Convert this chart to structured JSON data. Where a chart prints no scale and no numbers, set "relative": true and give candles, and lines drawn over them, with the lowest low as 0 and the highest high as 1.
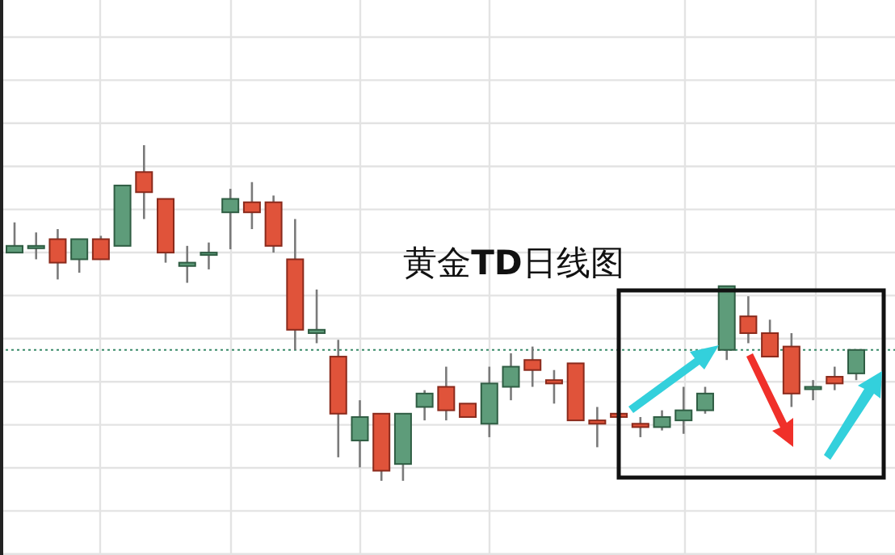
{
  "chart_data": {
    "type": "candlestick",
    "title": "黄金**TD**日线图",
    "relative": true,
    "grid": true,
    "categories": [
      null,
      null,
      null,
      null,
      null,
      null,
      null,
      null,
      null,
      null,
      null,
      null,
      null,
      null,
      null,
      null,
      null,
      null,
      null,
      null,
      null,
      null,
      null,
      null,
      null,
      null,
      null,
      null,
      null,
      null,
      null,
      null,
      null,
      null,
      null,
      null,
      null,
      null,
      null,
      null
    ],
    "ohlc": [
      [
        0.68,
        0.77,
        0.68,
        0.7
      ],
      [
        0.7,
        0.74,
        0.66,
        0.7
      ],
      [
        0.72,
        0.75,
        0.6,
        0.65
      ],
      [
        0.66,
        0.72,
        0.62,
        0.72
      ],
      [
        0.72,
        0.73,
        0.66,
        0.66
      ],
      [
        0.7,
        0.88,
        0.7,
        0.88
      ],
      [
        0.92,
        1.0,
        0.78,
        0.86
      ],
      [
        0.84,
        0.84,
        0.65,
        0.68
      ],
      [
        0.64,
        0.7,
        0.59,
        0.65
      ],
      [
        0.68,
        0.71,
        0.63,
        0.68
      ],
      [
        0.8,
        0.87,
        0.69,
        0.84
      ],
      [
        0.83,
        0.89,
        0.75,
        0.8
      ],
      [
        0.83,
        0.85,
        0.68,
        0.7
      ],
      [
        0.66,
        0.78,
        0.39,
        0.45
      ],
      [
        0.44,
        0.57,
        0.41,
        0.45
      ],
      [
        0.37,
        0.42,
        0.07,
        0.2
      ],
      [
        0.12,
        0.24,
        0.04,
        0.19
      ],
      [
        0.2,
        0.2,
        0,
        0.03
      ],
      [
        0.05,
        0.2,
        0,
        0.2
      ],
      [
        0.22,
        0.27,
        0.18,
        0.26
      ],
      [
        0.28,
        0.34,
        0.18,
        0.21
      ],
      [
        0.23,
        0.23,
        0.19,
        0.19
      ],
      [
        0.17,
        0.34,
        0.13,
        0.29
      ],
      [
        0.28,
        0.38,
        0.24,
        0.34
      ],
      [
        0.36,
        0.4,
        0.28,
        0.33
      ],
      [
        0.3,
        0.33,
        0.23,
        0.29
      ],
      [
        0.35,
        0.35,
        0.18,
        0.18
      ],
      [
        0.18,
        0.22,
        0.1,
        0.17
      ],
      [
        0.2,
        0.2,
        0.19,
        0.19
      ],
      [
        0.17,
        0.19,
        0.13,
        0.16
      ],
      [
        0.16,
        0.21,
        0.15,
        0.19
      ],
      [
        0.18,
        0.28,
        0.14,
        0.21
      ],
      [
        0.21,
        0.28,
        0.2,
        0.26
      ],
      [
        0.39,
        0.58,
        0.36,
        0.58
      ],
      [
        0.49,
        0.55,
        0.41,
        0.44
      ],
      [
        0.44,
        0.48,
        0.37,
        0.37
      ],
      [
        0.4,
        0.44,
        0.22,
        0.26
      ],
      [
        0.28,
        0.3,
        0.24,
        0.28
      ],
      [
        0.31,
        0.34,
        0.27,
        0.29
      ],
      [
        0.32,
        0.39,
        0.3,
        0.39
      ]
    ],
    "colors": [
      "#5e9c7a",
      "#5e9c7a",
      "#e0533a",
      "#5e9c7a",
      "#e0533a",
      "#5e9c7a",
      "#e0533a",
      "#e0533a",
      "#5e9c7a",
      "#5e9c7a",
      "#5e9c7a",
      "#e0533a",
      "#e0533a",
      "#e0533a",
      "#5e9c7a",
      "#e0533a",
      "#5e9c7a",
      "#e0533a",
      "#5e9c7a",
      "#5e9c7a",
      "#e0533a",
      "#e0533a",
      "#5e9c7a",
      "#5e9c7a",
      "#e0533a",
      "#e0533a",
      "#e0533a",
      "#e0533a",
      "#e0533a",
      "#e0533a",
      "#5e9c7a",
      "#5e9c7a",
      "#5e9c7a",
      "#5e9c7a",
      "#e0533a",
      "#e0533a",
      "#e0533a",
      "#5e9c7a",
      "#e0533a",
      "#5e9c7a"
    ],
    "ref_lines": [
      {
        "axis": "y",
        "value": 0.39,
        "color": "#3a8a6a",
        "line_style": "dotted"
      }
    ]
  }
}
